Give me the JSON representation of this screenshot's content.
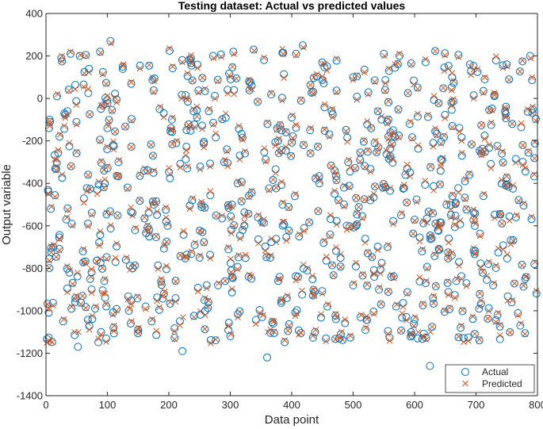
{
  "chart_data": {
    "type": "scatter",
    "title": "Testing dataset: Actual vs predicted values",
    "xlabel": "Data point",
    "ylabel": "Output variable",
    "xlim": [
      0,
      800
    ],
    "ylim": [
      -1400,
      400
    ],
    "xticks": [
      "0",
      "100",
      "200",
      "300",
      "400",
      "500",
      "600",
      "700",
      "800"
    ],
    "yticks": [
      "-1400",
      "-1200",
      "-1000",
      "-800",
      "-600",
      "-400",
      "-200",
      "0",
      "200",
      "400"
    ],
    "grid": false,
    "legend_position": "bottom-right",
    "colors": {
      "actual": "#0072BD",
      "predicted": "#D95319"
    },
    "n_points": 800,
    "series": [
      {
        "name": "Actual",
        "marker": "circle",
        "points_shown": [
          [
            5,
            -140
          ],
          [
            8,
            -520
          ],
          [
            12,
            -700
          ],
          [
            15,
            -330
          ],
          [
            18,
            10
          ],
          [
            22,
            -180
          ],
          [
            25,
            190
          ],
          [
            28,
            -1050
          ],
          [
            33,
            -570
          ],
          [
            38,
            -820
          ],
          [
            42,
            -590
          ],
          [
            48,
            -940
          ],
          [
            52,
            -1170
          ],
          [
            55,
            200
          ],
          [
            60,
            -720
          ],
          [
            65,
            205
          ],
          [
            72,
            -850
          ],
          [
            80,
            -990
          ],
          [
            88,
            220
          ],
          [
            95,
            -860
          ],
          [
            100,
            -140
          ],
          [
            105,
            270
          ],
          [
            110,
            -1080
          ],
          [
            118,
            -300
          ],
          [
            125,
            150
          ],
          [
            130,
            -760
          ],
          [
            135,
            -1000
          ],
          [
            138,
            -1060
          ],
          [
            145,
            -620
          ],
          [
            150,
            -1090
          ],
          [
            160,
            -340
          ],
          [
            168,
            -650
          ],
          [
            172,
            -1050
          ],
          [
            175,
            -350
          ],
          [
            185,
            -50
          ],
          [
            192,
            -920
          ],
          [
            198,
            -600
          ],
          [
            205,
            -100
          ],
          [
            212,
            -210
          ],
          [
            222,
            -1190
          ],
          [
            230,
            -330
          ],
          [
            238,
            -480
          ],
          [
            242,
            -690
          ],
          [
            250,
            -750
          ],
          [
            258,
            -950
          ],
          [
            265,
            -60
          ],
          [
            272,
            200
          ],
          [
            280,
            -880
          ],
          [
            290,
            -300
          ],
          [
            300,
            -1120
          ],
          [
            305,
            220
          ],
          [
            312,
            -400
          ],
          [
            320,
            -620
          ],
          [
            330,
            -840
          ],
          [
            338,
            230
          ],
          [
            345,
            -560
          ],
          [
            352,
            -1030
          ],
          [
            360,
            -1220
          ],
          [
            365,
            -750
          ],
          [
            370,
            -1060
          ],
          [
            378,
            -200
          ],
          [
            385,
            -500
          ],
          [
            392,
            -940
          ],
          [
            400,
            -90
          ],
          [
            405,
            -460
          ],
          [
            412,
            -650
          ],
          [
            418,
            250
          ],
          [
            425,
            -810
          ],
          [
            430,
            -150
          ],
          [
            438,
            -1100
          ],
          [
            445,
            -400
          ],
          [
            452,
            -680
          ],
          [
            458,
            -980
          ],
          [
            465,
            -60
          ],
          [
            472,
            -1040
          ],
          [
            480,
            -1110
          ],
          [
            485,
            -420
          ],
          [
            492,
            -300
          ],
          [
            500,
            -880
          ],
          [
            505,
            -600
          ],
          [
            512,
            -1030
          ],
          [
            520,
            -1090
          ],
          [
            528,
            -480
          ],
          [
            535,
            -210
          ],
          [
            542,
            -900
          ],
          [
            550,
            210
          ],
          [
            556,
            -700
          ],
          [
            562,
            -840
          ],
          [
            570,
            -980
          ],
          [
            578,
            -550
          ],
          [
            585,
            -360
          ],
          [
            592,
            -120
          ],
          [
            600,
            -1040
          ],
          [
            605,
            -1130
          ],
          [
            612,
            -720
          ],
          [
            618,
            -870
          ],
          [
            625,
            -1260
          ],
          [
            630,
            -940
          ],
          [
            638,
            -620
          ],
          [
            645,
            -290
          ],
          [
            652,
            -500
          ],
          [
            660,
            -20
          ],
          [
            668,
            -860
          ],
          [
            675,
            -1080
          ],
          [
            682,
            -390
          ],
          [
            690,
            160
          ],
          [
            698,
            -600
          ],
          [
            705,
            -990
          ],
          [
            712,
            -460
          ],
          [
            720,
            -780
          ],
          [
            728,
            -880
          ],
          [
            735,
            -1020
          ],
          [
            742,
            -260
          ],
          [
            750,
            160
          ],
          [
            758,
            -960
          ],
          [
            765,
            -560
          ],
          [
            772,
            -1070
          ],
          [
            780,
            -850
          ],
          [
            788,
            200
          ],
          [
            795,
            -780
          ]
        ]
      },
      {
        "name": "Predicted",
        "marker": "cross",
        "points_shown": [
          [
            6,
            -130
          ],
          [
            9,
            -510
          ],
          [
            13,
            -690
          ],
          [
            16,
            -340
          ],
          [
            19,
            20
          ],
          [
            23,
            -170
          ],
          [
            26,
            200
          ],
          [
            29,
            -1040
          ],
          [
            34,
            -560
          ],
          [
            39,
            -810
          ],
          [
            43,
            -600
          ],
          [
            49,
            -930
          ],
          [
            53,
            -1100
          ],
          [
            56,
            205
          ],
          [
            61,
            -710
          ],
          [
            66,
            200
          ],
          [
            73,
            -840
          ],
          [
            81,
            -980
          ],
          [
            89,
            215
          ],
          [
            96,
            -850
          ],
          [
            101,
            -130
          ],
          [
            106,
            260
          ],
          [
            111,
            -1070
          ],
          [
            119,
            -290
          ],
          [
            126,
            160
          ],
          [
            131,
            -750
          ],
          [
            136,
            -990
          ],
          [
            139,
            -1050
          ],
          [
            146,
            -610
          ],
          [
            151,
            -1080
          ],
          [
            161,
            -330
          ],
          [
            169,
            -640
          ],
          [
            173,
            -1040
          ],
          [
            176,
            -340
          ],
          [
            186,
            -40
          ],
          [
            193,
            -910
          ],
          [
            199,
            -590
          ],
          [
            206,
            -90
          ],
          [
            213,
            -200
          ],
          [
            223,
            -1030
          ],
          [
            231,
            -320
          ],
          [
            239,
            -470
          ],
          [
            243,
            -680
          ],
          [
            251,
            -740
          ],
          [
            259,
            -940
          ],
          [
            266,
            -50
          ],
          [
            273,
            190
          ],
          [
            281,
            -870
          ],
          [
            291,
            -290
          ],
          [
            301,
            -1110
          ],
          [
            306,
            210
          ],
          [
            313,
            -390
          ],
          [
            321,
            -610
          ],
          [
            331,
            -830
          ],
          [
            339,
            225
          ],
          [
            346,
            -550
          ],
          [
            353,
            -1020
          ],
          [
            361,
            -1100
          ],
          [
            366,
            -740
          ],
          [
            371,
            -1050
          ],
          [
            379,
            -190
          ],
          [
            386,
            -490
          ],
          [
            393,
            -930
          ],
          [
            401,
            -80
          ],
          [
            406,
            -450
          ],
          [
            413,
            -640
          ],
          [
            419,
            240
          ],
          [
            426,
            -800
          ],
          [
            431,
            -140
          ],
          [
            439,
            -1090
          ],
          [
            446,
            -390
          ],
          [
            453,
            -670
          ],
          [
            459,
            -970
          ],
          [
            466,
            -50
          ],
          [
            473,
            -1030
          ],
          [
            481,
            -1100
          ],
          [
            486,
            -410
          ],
          [
            493,
            -290
          ],
          [
            501,
            -870
          ],
          [
            506,
            -590
          ],
          [
            513,
            -1020
          ],
          [
            521,
            -1080
          ],
          [
            529,
            -470
          ],
          [
            536,
            -200
          ],
          [
            543,
            -890
          ],
          [
            551,
            200
          ],
          [
            557,
            -690
          ],
          [
            563,
            -830
          ],
          [
            571,
            -970
          ],
          [
            579,
            -540
          ],
          [
            586,
            -350
          ],
          [
            593,
            -110
          ],
          [
            601,
            -1030
          ],
          [
            606,
            -1100
          ],
          [
            613,
            -710
          ],
          [
            619,
            -860
          ],
          [
            626,
            -1100
          ],
          [
            631,
            -930
          ],
          [
            639,
            -610
          ],
          [
            646,
            -280
          ],
          [
            653,
            -490
          ],
          [
            661,
            -10
          ],
          [
            669,
            -850
          ],
          [
            676,
            -1070
          ],
          [
            683,
            -380
          ],
          [
            691,
            150
          ],
          [
            699,
            -590
          ],
          [
            706,
            -980
          ],
          [
            713,
            -450
          ],
          [
            721,
            -770
          ],
          [
            729,
            -870
          ],
          [
            736,
            -1010
          ],
          [
            743,
            -250
          ],
          [
            751,
            150
          ],
          [
            759,
            -950
          ],
          [
            766,
            -550
          ],
          [
            773,
            -1060
          ],
          [
            781,
            -840
          ],
          [
            789,
            190
          ],
          [
            796,
            -770
          ]
        ]
      }
    ]
  }
}
